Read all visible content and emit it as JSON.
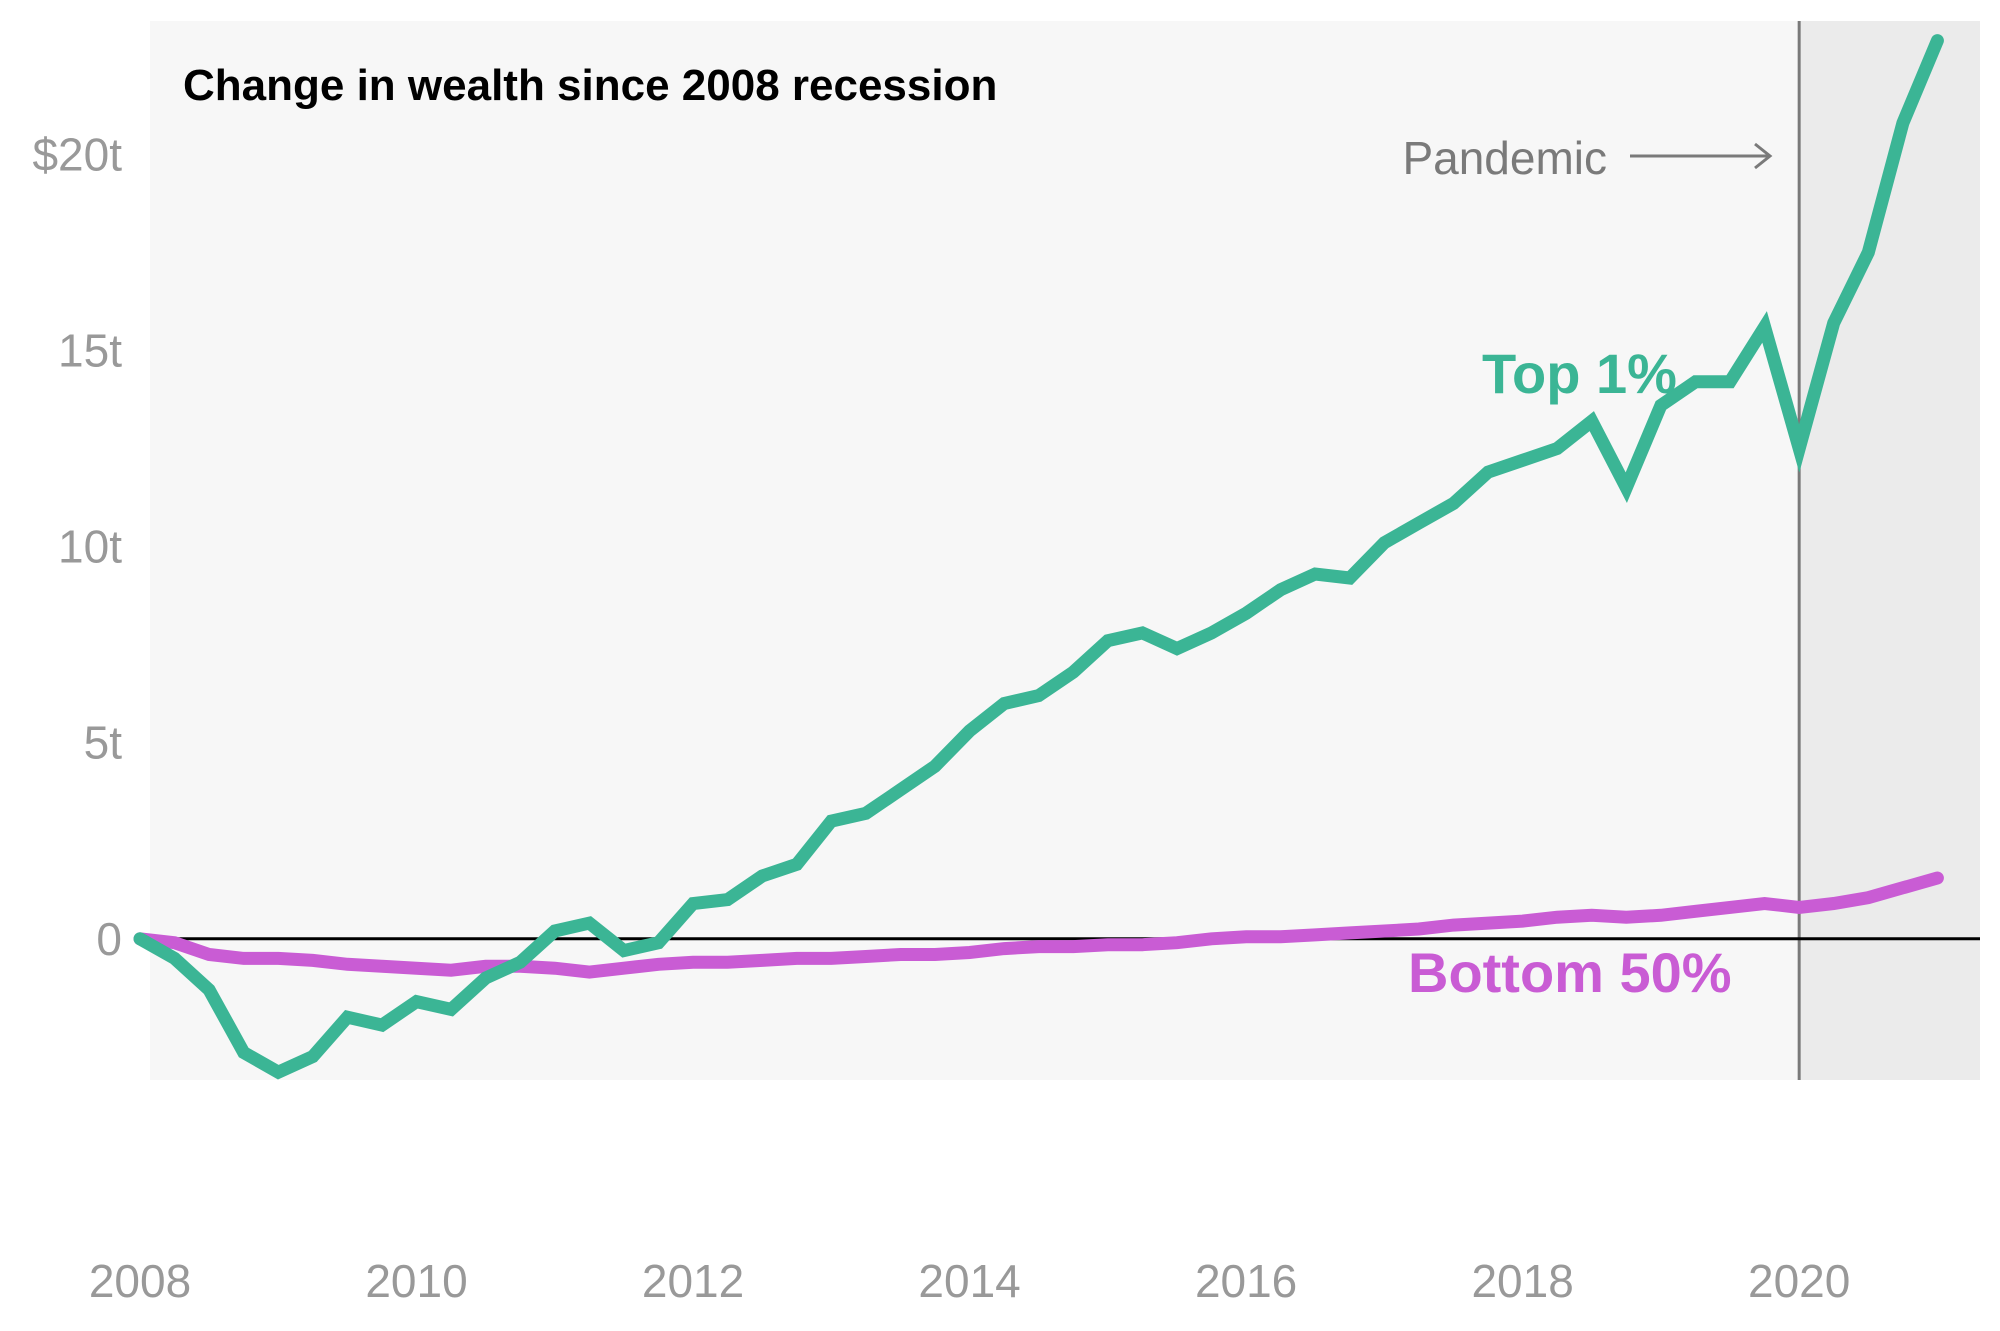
{
  "chart_data": {
    "type": "line",
    "title": "Change in wealth since 2008 recession",
    "xlabel": "",
    "ylabel": "",
    "xlim": [
      2008.0,
      2021.25
    ],
    "ylim": [
      -3.6,
      23.4
    ],
    "x_ticks": [
      {
        "value": 2008,
        "label": "2008"
      },
      {
        "value": 2010,
        "label": "2010"
      },
      {
        "value": 2012,
        "label": "2012"
      },
      {
        "value": 2014,
        "label": "2014"
      },
      {
        "value": 2016,
        "label": "2016"
      },
      {
        "value": 2018,
        "label": "2018"
      },
      {
        "value": 2020,
        "label": "2020"
      }
    ],
    "y_ticks": [
      {
        "value": 0,
        "label": "0"
      },
      {
        "value": 5,
        "label": "5t"
      },
      {
        "value": 10,
        "label": "10t"
      },
      {
        "value": 15,
        "label": "15t"
      },
      {
        "value": 20,
        "label": "$20t"
      }
    ],
    "grid": false,
    "annotation": {
      "text": "Pandemic",
      "x": 2020.0,
      "shade_from": 2020.0
    },
    "x": [
      2008.0,
      2008.25,
      2008.5,
      2008.75,
      2009.0,
      2009.25,
      2009.5,
      2009.75,
      2010.0,
      2010.25,
      2010.5,
      2010.75,
      2011.0,
      2011.25,
      2011.5,
      2011.75,
      2012.0,
      2012.25,
      2012.5,
      2012.75,
      2013.0,
      2013.25,
      2013.5,
      2013.75,
      2014.0,
      2014.25,
      2014.5,
      2014.75,
      2015.0,
      2015.25,
      2015.5,
      2015.75,
      2016.0,
      2016.25,
      2016.5,
      2016.75,
      2017.0,
      2017.25,
      2017.5,
      2017.75,
      2018.0,
      2018.25,
      2018.5,
      2018.75,
      2019.0,
      2019.25,
      2019.5,
      2019.75,
      2020.0,
      2020.25,
      2020.5,
      2020.75,
      2021.0
    ],
    "series": [
      {
        "name": "Top 1%",
        "color": "#3bb595",
        "values": [
          0.0,
          -0.5,
          -1.3,
          -2.9,
          -3.4,
          -3.0,
          -2.0,
          -2.2,
          -1.6,
          -1.8,
          -1.0,
          -0.6,
          0.2,
          0.4,
          -0.3,
          -0.1,
          0.9,
          1.0,
          1.6,
          1.9,
          3.0,
          3.2,
          3.8,
          4.4,
          5.3,
          6.0,
          6.2,
          6.8,
          7.6,
          7.8,
          7.4,
          7.8,
          8.3,
          8.9,
          9.3,
          9.2,
          10.1,
          10.6,
          11.1,
          11.9,
          12.2,
          12.5,
          13.2,
          11.5,
          13.6,
          14.2,
          14.2,
          15.6,
          12.5,
          15.7,
          17.5,
          20.8,
          22.9
        ]
      },
      {
        "name": "Bottom 50%",
        "color": "#c95cd4",
        "values": [
          0.0,
          -0.1,
          -0.4,
          -0.5,
          -0.5,
          -0.55,
          -0.65,
          -0.7,
          -0.75,
          -0.8,
          -0.7,
          -0.7,
          -0.75,
          -0.85,
          -0.75,
          -0.65,
          -0.6,
          -0.6,
          -0.55,
          -0.5,
          -0.5,
          -0.45,
          -0.4,
          -0.4,
          -0.35,
          -0.25,
          -0.2,
          -0.2,
          -0.15,
          -0.15,
          -0.1,
          0.0,
          0.05,
          0.05,
          0.1,
          0.15,
          0.2,
          0.25,
          0.35,
          0.4,
          0.45,
          0.55,
          0.6,
          0.55,
          0.6,
          0.7,
          0.8,
          0.9,
          0.8,
          0.9,
          1.05,
          1.3,
          1.55
        ]
      }
    ]
  }
}
